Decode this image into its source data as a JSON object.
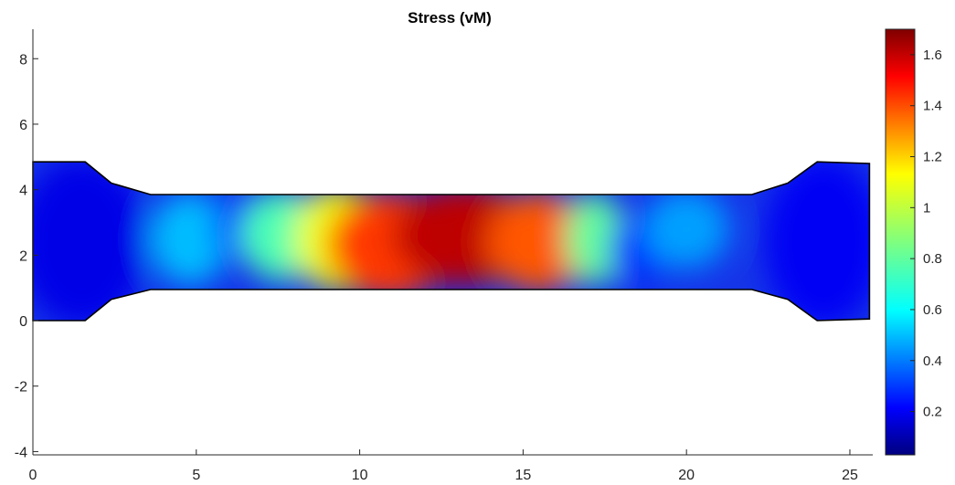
{
  "chart_data": {
    "type": "heatmap",
    "title": "Stress (vM)",
    "xlabel": "",
    "ylabel": "",
    "xlim": [
      0,
      25.7
    ],
    "ylim": [
      -4.1,
      8.9
    ],
    "x_ticks": [
      0,
      5,
      10,
      15,
      20,
      25
    ],
    "y_ticks": [
      -4,
      -2,
      0,
      2,
      4,
      6,
      8
    ],
    "grid": false,
    "colormap": "jet",
    "colorbar": {
      "range": [
        0.03,
        1.7
      ],
      "ticks": [
        0.2,
        0.4,
        0.6,
        0.8,
        1,
        1.2,
        1.4,
        1.6
      ]
    },
    "specimen_outline": [
      [
        0,
        0
      ],
      [
        1.6,
        0
      ],
      [
        2.4,
        0.65
      ],
      [
        3.6,
        0.95
      ],
      [
        22,
        0.95
      ],
      [
        23.1,
        0.65
      ],
      [
        24,
        0
      ],
      [
        25.6,
        0.05
      ],
      [
        25.6,
        4.8
      ],
      [
        24,
        4.85
      ],
      [
        23.1,
        4.2
      ],
      [
        22,
        3.85
      ],
      [
        3.6,
        3.85
      ],
      [
        2.4,
        4.2
      ],
      [
        1.6,
        4.85
      ],
      [
        0,
        4.85
      ]
    ],
    "stress_hotspots": [
      {
        "x": 1.5,
        "y": 2.4,
        "rx": 2.0,
        "ry": 2.6,
        "value": 0.2
      },
      {
        "x": 4.8,
        "y": 2.5,
        "rx": 1.2,
        "ry": 1.4,
        "value": 0.55
      },
      {
        "x": 6.5,
        "y": 2.8,
        "rx": 1.0,
        "ry": 1.0,
        "value": 0.35
      },
      {
        "x": 7.6,
        "y": 2.6,
        "rx": 1.2,
        "ry": 1.4,
        "value": 0.78
      },
      {
        "x": 9.3,
        "y": 2.5,
        "rx": 1.3,
        "ry": 1.6,
        "value": 1.05
      },
      {
        "x": 10.9,
        "y": 2.3,
        "rx": 1.9,
        "ry": 1.6,
        "value": 1.4
      },
      {
        "x": 13.2,
        "y": 2.6,
        "rx": 2.2,
        "ry": 1.5,
        "value": 1.6
      },
      {
        "x": 15.5,
        "y": 2.4,
        "rx": 1.6,
        "ry": 1.5,
        "value": 1.35
      },
      {
        "x": 17.2,
        "y": 2.5,
        "rx": 0.9,
        "ry": 1.4,
        "value": 0.82
      },
      {
        "x": 18.6,
        "y": 2.2,
        "rx": 1.0,
        "ry": 1.0,
        "value": 0.3
      },
      {
        "x": 20.0,
        "y": 2.8,
        "rx": 1.3,
        "ry": 1.2,
        "value": 0.5
      },
      {
        "x": 24.2,
        "y": 2.4,
        "rx": 1.8,
        "ry": 2.6,
        "value": 0.22
      }
    ]
  }
}
